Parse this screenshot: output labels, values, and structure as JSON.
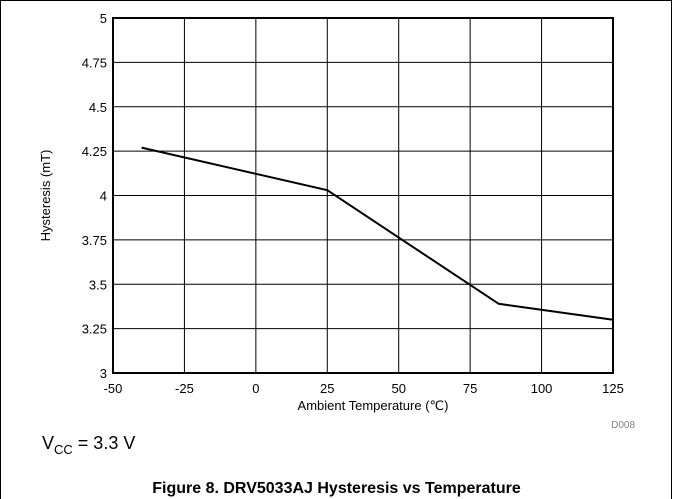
{
  "chart_data": {
    "type": "line",
    "title": "",
    "xlabel": "Ambient Temperature (℃)",
    "ylabel": "Hysteresis (mT)",
    "xlim": [
      -50,
      125
    ],
    "ylim": [
      3,
      5
    ],
    "xticks": [
      "-50",
      "-25",
      "0",
      "25",
      "50",
      "75",
      "100",
      "125"
    ],
    "yticks": [
      "3",
      "3.25",
      "3.5",
      "3.75",
      "4",
      "4.25",
      "4.5",
      "4.75",
      "5"
    ],
    "grid": true,
    "series": [
      {
        "x": [
          -40,
          25,
          85,
          125
        ],
        "y": [
          4.27,
          4.03,
          3.39,
          3.3
        ]
      }
    ],
    "code": "D008"
  },
  "condition": {
    "var": "V",
    "sub": "CC",
    "rest": " = 3.3 V"
  },
  "caption": "Figure 8. DRV5033AJ Hysteresis vs Temperature",
  "colors": {
    "line": "#000000",
    "grid": "#000000"
  }
}
